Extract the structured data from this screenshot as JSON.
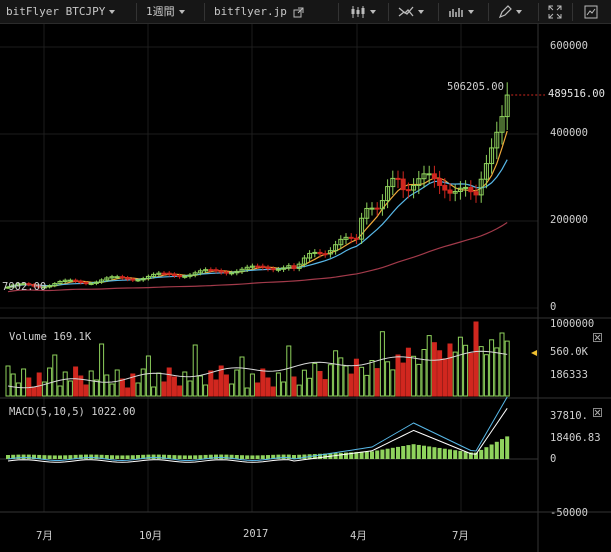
{
  "toolbar": {
    "symbol": "bitFlyer BTCJPY",
    "interval": "1週間",
    "source": "bitflyer.jp"
  },
  "price_axis": {
    "ticks": [
      "600000",
      "400000",
      "200000",
      "0"
    ],
    "last_price": "489516.00",
    "high_label": "506205.00",
    "low_label": "7902.00"
  },
  "volume_pane": {
    "label": "Volume",
    "value": "169.1K",
    "ticks": [
      "1000000",
      "560.0K",
      "186333"
    ]
  },
  "macd_pane": {
    "label": "MACD(5,10,5)",
    "value": "1022.00",
    "ticks": [
      "37810.",
      "18406.83",
      "0",
      "-50000"
    ]
  },
  "time_axis": [
    "7月",
    "10月",
    "2017",
    "4月",
    "7月"
  ],
  "colors": {
    "up": "#8fd25d",
    "down": "#d0271f",
    "ma_fast": "#f0a83a",
    "ma_mid": "#58b8e8",
    "ma_slow": "#a23a4a",
    "volume_ma": "#d8d8d8",
    "macd_line": "#58b8e8",
    "signal_line": "#ffffff"
  },
  "chart_data": {
    "type": "candlestick",
    "note_units": "JPY per week",
    "time_labels": [
      "7月",
      "10月",
      "2017",
      "4月",
      "7月"
    ],
    "price_ticks": [
      0,
      200000,
      400000,
      600000
    ],
    "high": 506205,
    "last": 489516,
    "low_marker": 7902
  }
}
